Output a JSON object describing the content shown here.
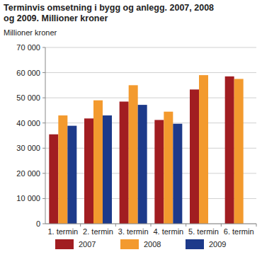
{
  "chart_data": {
    "type": "bar",
    "title": "Terminvis omsetning i bygg og anlegg. 2007, 2008 og 2009. Millioner kroner",
    "y_label": "Millioner kroner",
    "categories": [
      "1. termin",
      "2. termin",
      "3. termin",
      "4. termin",
      "5. termin",
      "6. termin"
    ],
    "series": [
      {
        "name": "2007",
        "color": "#a11d21",
        "values": [
          35500,
          41800,
          48500,
          41200,
          53300,
          58500
        ]
      },
      {
        "name": "2008",
        "color": "#f39a2e",
        "values": [
          43000,
          49000,
          55000,
          44500,
          59000,
          57500
        ]
      },
      {
        "name": "2009",
        "color": "#1d3a8a",
        "values": [
          38900,
          43000,
          47200,
          39700,
          null,
          null
        ]
      }
    ],
    "ylim": [
      0,
      70000
    ],
    "yticks": [
      0,
      {
        "value": 10000,
        "label": "10 000"
      },
      {
        "value": 20000,
        "label": "20 000"
      },
      {
        "value": 30000,
        "label": "30 000"
      },
      {
        "value": 40000,
        "label": "40 000"
      },
      {
        "value": 50000,
        "label": "50 000"
      },
      {
        "value": 60000,
        "label": "60 000"
      },
      {
        "value": 70000,
        "label": "70 000"
      }
    ],
    "grid": true,
    "legend": "bottom"
  }
}
